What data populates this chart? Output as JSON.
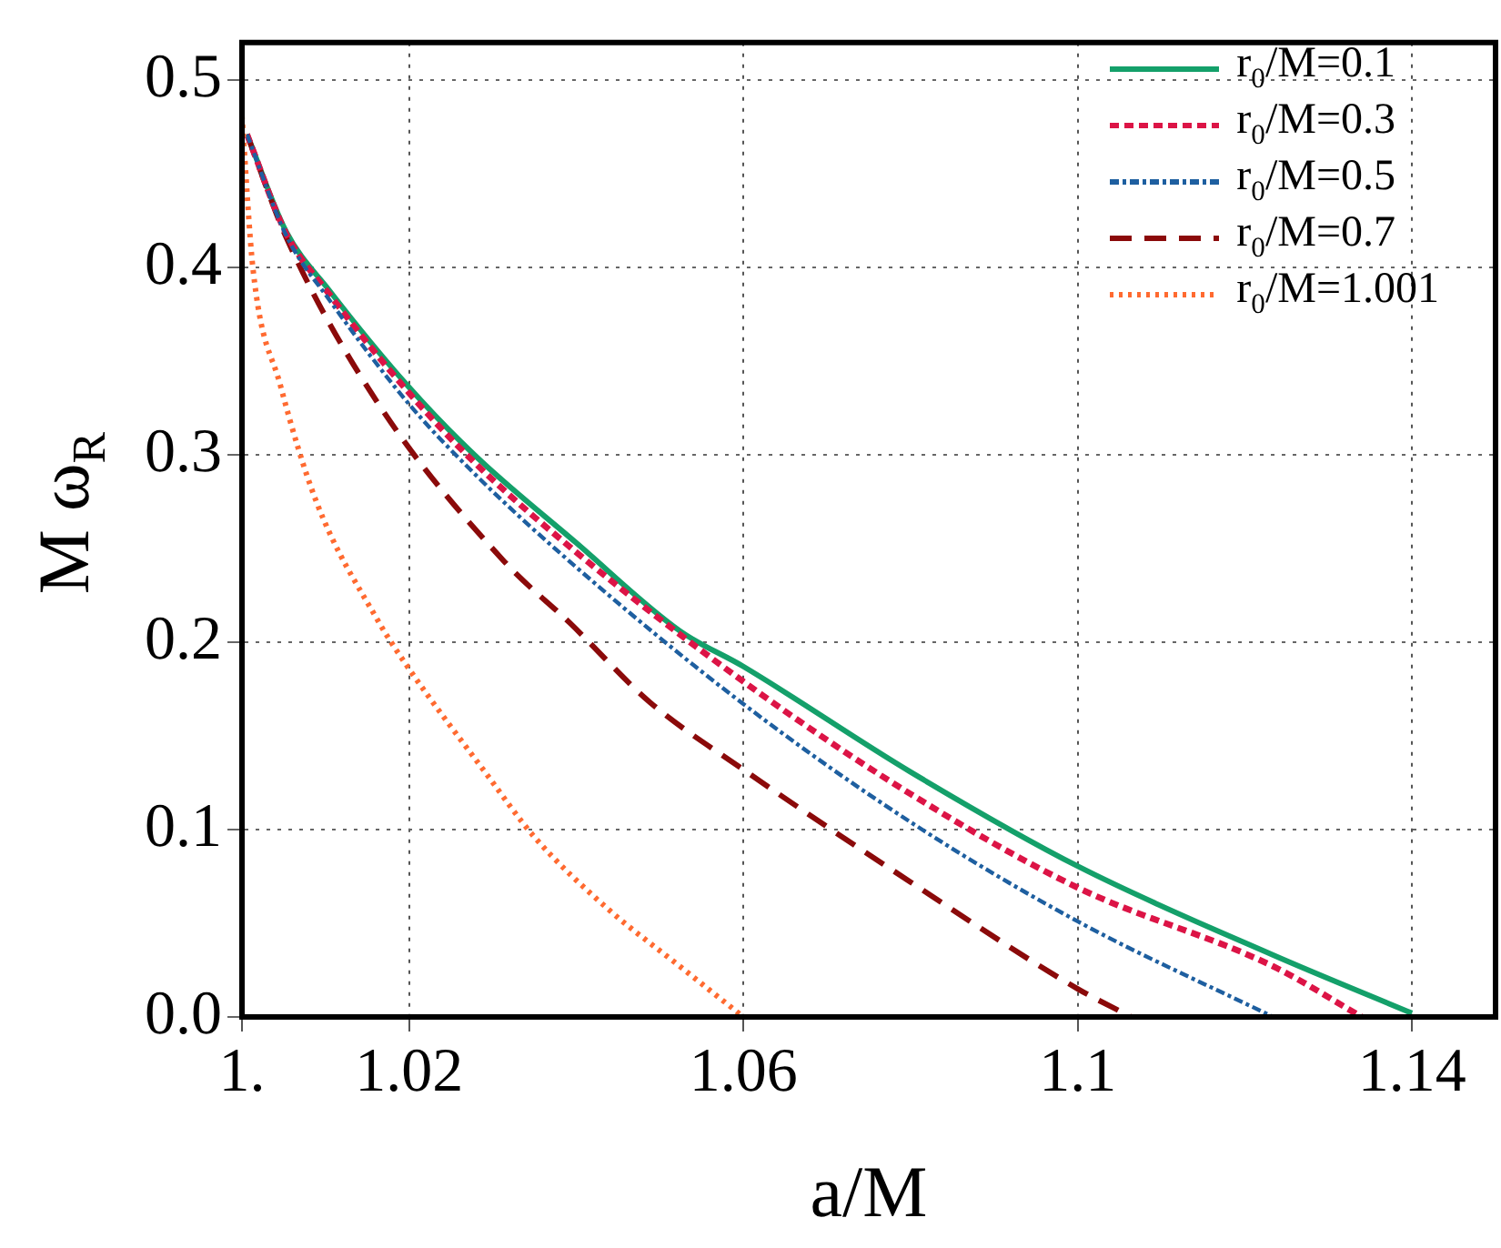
{
  "chart_data": {
    "type": "line",
    "xlabel": "a/M",
    "ylabel": "M ω$_{R}$",
    "xlim": [
      1,
      1.15
    ],
    "ylim": [
      0,
      0.52
    ],
    "xticks": [
      {
        "value": 1,
        "label": "1."
      },
      1.02,
      1.06,
      1.1,
      1.14
    ],
    "yticks": [
      {
        "value": 0,
        "label": "0.0"
      },
      0.1,
      0.2,
      0.3,
      0.4,
      0.5
    ],
    "grid": true,
    "legend": "top right",
    "marker": "none",
    "series": [
      {
        "name": "r$_{0}$/M=0.1",
        "color": "#14a06a",
        "line_style": "solid",
        "x": [
          1.0006,
          1.0053,
          1.0104,
          1.0198,
          1.0278,
          1.04,
          1.0524,
          1.06,
          1.0799,
          1.1002,
          1.1234,
          1.14
        ],
        "values": [
          0.471,
          0.419,
          0.388,
          0.337,
          0.3,
          0.253,
          0.206,
          0.187,
          0.131,
          0.08,
          0.033,
          0.002
        ]
      },
      {
        "name": "r$_{0}$/M=0.3",
        "color": "#dc1446",
        "line_style": "dashed",
        "x": [
          1.0006,
          1.0053,
          1.0104,
          1.02,
          1.0278,
          1.04,
          1.06,
          1.08,
          1.1,
          1.1234,
          1.134
        ],
        "values": [
          0.471,
          0.418,
          0.386,
          0.333,
          0.296,
          0.248,
          0.179,
          0.119,
          0.069,
          0.027,
          0
        ]
      },
      {
        "name": "r$_{0}$/M=0.5",
        "color": "#1e5fa0",
        "line_style": "dashdot",
        "x": [
          1.0006,
          1.0053,
          1.0104,
          1.02,
          1.0278,
          1.04,
          1.06,
          1.08,
          1.1,
          1.1234
        ],
        "values": [
          0.471,
          0.417,
          0.383,
          0.327,
          0.29,
          0.24,
          0.167,
          0.104,
          0.051,
          0
        ]
      },
      {
        "name": "r$_{0}$/M=0.7",
        "color": "#8b0a0a",
        "line_style": "longdash",
        "x": [
          1.0006,
          1.0053,
          1.0162,
          1.0314,
          1.0393,
          1.0488,
          1.06,
          1.08,
          1.1,
          1.1064
        ],
        "values": [
          0.471,
          0.416,
          0.328,
          0.243,
          0.21,
          0.168,
          0.132,
          0.072,
          0.015,
          0
        ]
      },
      {
        "name": "r$_{0}$/M=1.001",
        "color": "#ff6a30",
        "line_style": "dotted",
        "x": [
          1,
          1.0013,
          1.0046,
          1.0089,
          1.0162,
          1.0198,
          1.0292,
          1.035,
          1.0437,
          1.0524,
          1.06
        ],
        "values": [
          0.481,
          0.4,
          0.337,
          0.275,
          0.212,
          0.187,
          0.13,
          0.096,
          0.058,
          0.027,
          0
        ]
      }
    ]
  }
}
